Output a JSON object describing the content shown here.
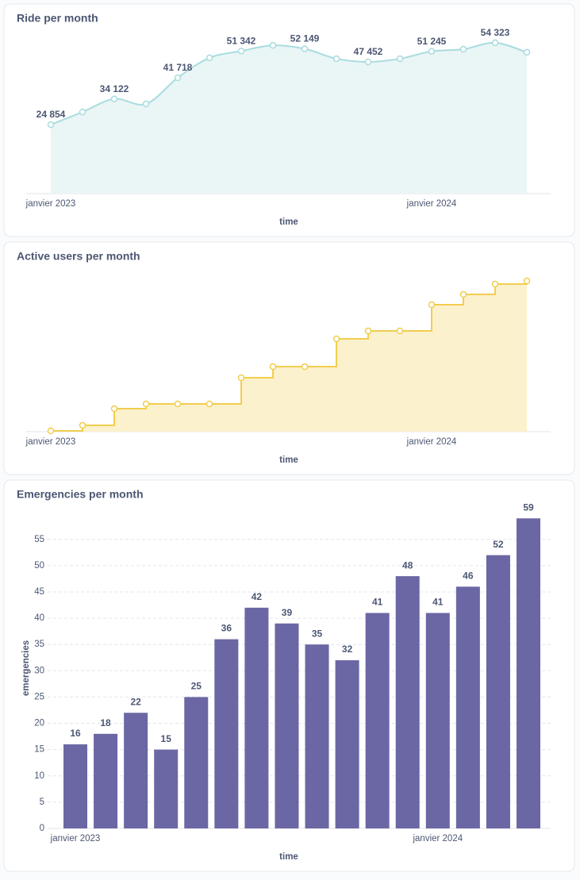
{
  "chart_data": [
    {
      "type": "area",
      "title": "Ride per month",
      "categories": [
        "janvier 2023",
        null,
        null,
        null,
        null,
        null,
        null,
        null,
        null,
        null,
        null,
        null,
        "janvier 2024",
        null,
        null,
        null
      ],
      "values": [
        24854,
        29400,
        34122,
        32300,
        41718,
        48900,
        51342,
        53400,
        52149,
        48600,
        47452,
        48600,
        51245,
        52000,
        54323,
        50900
      ],
      "value_labels": [
        "24 854",
        null,
        "34 122",
        null,
        "41 718",
        null,
        "51 342",
        null,
        "52 149",
        null,
        "47 452",
        null,
        "51 245",
        null,
        "54 323",
        null
      ],
      "ylim": [
        0,
        58300
      ],
      "x_label": "time",
      "color": "#a8dcdf",
      "fill": "#eaf5f6"
    },
    {
      "type": "step",
      "title": "Active users per month",
      "categories": [
        "janvier 2023",
        null,
        null,
        null,
        null,
        null,
        null,
        null,
        null,
        null,
        null,
        null,
        "janvier 2024",
        null,
        null,
        null
      ],
      "values": [
        1,
        8,
        29,
        35,
        35,
        35,
        68,
        82,
        82,
        117,
        127,
        127,
        160,
        173,
        186,
        190
      ],
      "ylim": [
        0,
        200
      ],
      "x_label": "time",
      "color": "#f2cd4f",
      "fill": "#fbf1cc"
    },
    {
      "type": "bar",
      "title": "Emergencies per month",
      "categories": [
        "janvier 2023",
        null,
        null,
        null,
        null,
        null,
        null,
        null,
        null,
        null,
        null,
        null,
        "janvier 2024",
        null,
        null,
        null
      ],
      "values": [
        16,
        18,
        22,
        15,
        25,
        36,
        42,
        39,
        35,
        32,
        41,
        48,
        41,
        46,
        52,
        59
      ],
      "ylim": [
        0,
        61
      ],
      "yticks": [
        0,
        5,
        10,
        15,
        20,
        25,
        30,
        35,
        40,
        45,
        50,
        55
      ],
      "x_label": "time",
      "y_label": "emergencies",
      "color": "#6b67a4",
      "grid": true
    }
  ]
}
